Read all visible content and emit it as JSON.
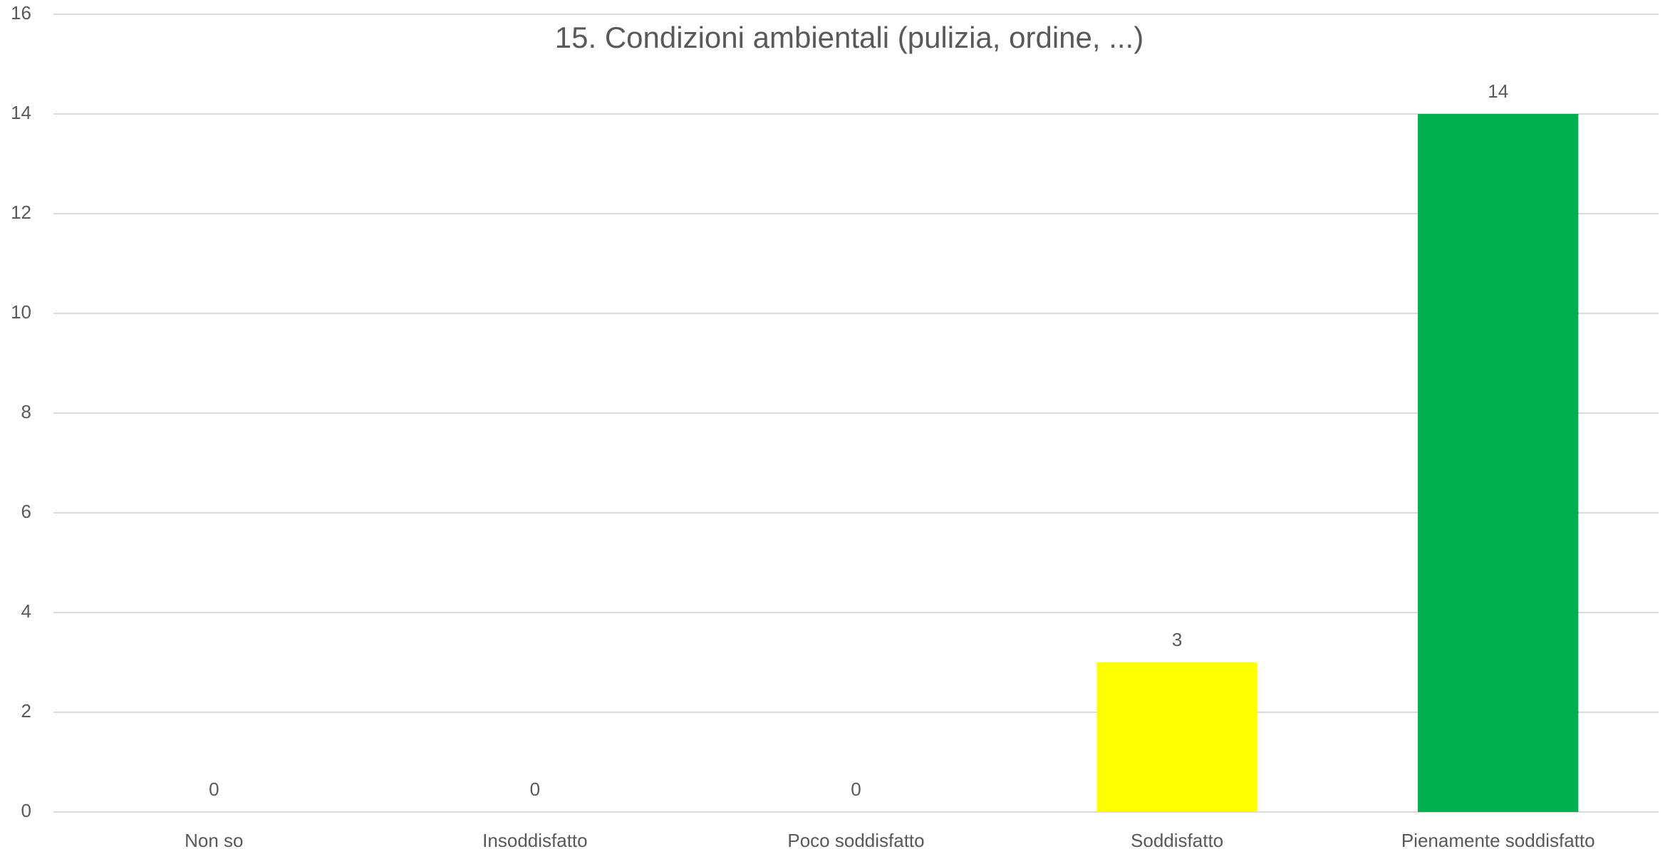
{
  "chart_data": {
    "type": "bar",
    "title": "15. Condizioni ambientali (pulizia, ordine, ...)",
    "categories": [
      "Non so",
      "Insoddisfatto",
      "Poco soddisfatto",
      "Soddisfatto",
      "Pienamente soddisfatto"
    ],
    "values": [
      0,
      0,
      0,
      3,
      14
    ],
    "colors": [
      "#ff0000",
      "#ff0000",
      "#ffc000",
      "#ffff00",
      "#00b050"
    ],
    "ylim": [
      0,
      16
    ],
    "yticks": [
      0,
      2,
      4,
      6,
      8,
      10,
      12,
      14,
      16
    ],
    "grid": true
  }
}
